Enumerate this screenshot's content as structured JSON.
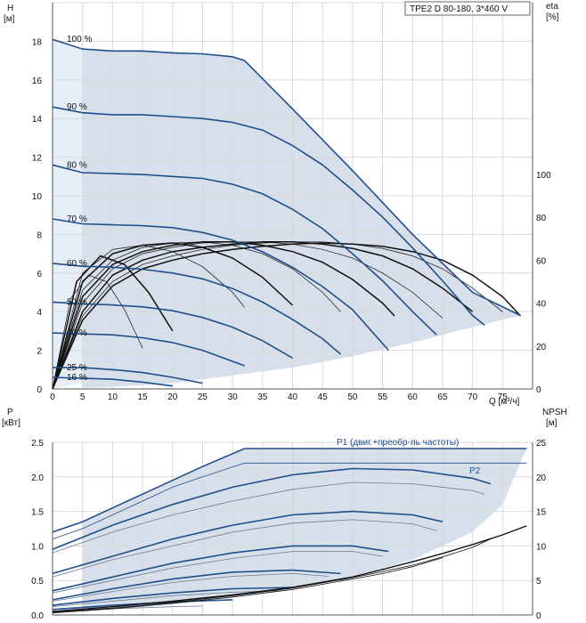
{
  "chart_data": [
    {
      "type": "line",
      "title": "TPE2 D 80-180, 3*460 V",
      "ylabel_left": "H",
      "ylabel_left_unit": "[м]",
      "ylabel_right": "eta",
      "ylabel_right_unit": "[%]",
      "xlabel": "Q [м³/ч]",
      "xlim": [
        0,
        80
      ],
      "ylim_left": [
        0,
        20
      ],
      "ylim_right": [
        0,
        180
      ],
      "x_ticks": [
        0,
        5,
        10,
        15,
        20,
        25,
        30,
        35,
        40,
        45,
        50,
        55,
        60,
        65,
        70,
        75
      ],
      "y_ticks_left": [
        0,
        2,
        4,
        6,
        8,
        10,
        12,
        14,
        16,
        18
      ],
      "y_ticks_right": [
        0,
        20,
        40,
        60,
        80,
        100
      ],
      "grid": true,
      "operating_area_color": "#c9d6e3",
      "curve_color": "#1f4e8c",
      "series": [
        {
          "label": "100 %",
          "x": [
            0,
            5,
            10,
            15,
            20,
            25,
            30,
            32,
            40,
            50,
            60,
            70,
            78
          ],
          "y": [
            18.1,
            17.6,
            17.5,
            17.5,
            17.4,
            17.35,
            17.2,
            17.0,
            14.5,
            11.3,
            8.0,
            5.0,
            3.8
          ]
        },
        {
          "label": "90 %",
          "x": [
            0,
            5,
            10,
            15,
            20,
            25,
            30,
            35,
            40,
            45,
            50,
            55,
            60,
            65,
            70,
            72
          ],
          "y": [
            14.6,
            14.3,
            14.2,
            14.2,
            14.1,
            14.0,
            13.8,
            13.4,
            12.6,
            11.6,
            10.3,
            8.9,
            7.3,
            5.6,
            3.8,
            3.3
          ]
        },
        {
          "label": "80 %",
          "x": [
            0,
            5,
            10,
            15,
            20,
            25,
            30,
            35,
            40,
            45,
            50,
            55,
            60,
            64
          ],
          "y": [
            11.6,
            11.2,
            11.15,
            11.1,
            11.0,
            10.9,
            10.6,
            10.1,
            9.3,
            8.3,
            7.0,
            5.6,
            4.0,
            2.8
          ]
        },
        {
          "label": "70 %",
          "x": [
            0,
            5,
            10,
            15,
            20,
            25,
            30,
            35,
            40,
            45,
            50,
            56
          ],
          "y": [
            8.8,
            8.55,
            8.5,
            8.45,
            8.35,
            8.1,
            7.7,
            7.1,
            6.3,
            5.3,
            4.1,
            2.0
          ]
        },
        {
          "label": "60 %",
          "x": [
            0,
            5,
            10,
            15,
            20,
            25,
            30,
            35,
            40,
            45,
            48
          ],
          "y": [
            6.5,
            6.35,
            6.3,
            6.2,
            6.0,
            5.7,
            5.2,
            4.5,
            3.6,
            2.6,
            1.8
          ]
        },
        {
          "label": "50 %",
          "x": [
            0,
            5,
            10,
            15,
            20,
            25,
            30,
            35,
            40
          ],
          "y": [
            4.5,
            4.4,
            4.35,
            4.25,
            4.05,
            3.7,
            3.2,
            2.5,
            1.6
          ]
        },
        {
          "label": "40 %",
          "x": [
            0,
            5,
            10,
            15,
            20,
            25,
            32
          ],
          "y": [
            2.9,
            2.85,
            2.8,
            2.65,
            2.4,
            2.0,
            1.2
          ]
        },
        {
          "label": "25 %",
          "x": [
            0,
            5,
            10,
            15,
            20,
            25
          ],
          "y": [
            1.1,
            1.1,
            1.0,
            0.85,
            0.6,
            0.3
          ]
        },
        {
          "label": "16 %",
          "x": [
            0,
            5,
            10,
            15,
            20
          ],
          "y": [
            0.6,
            0.55,
            0.5,
            0.35,
            0.15
          ]
        }
      ],
      "efficiency_curves": [
        {
          "x": [
            0,
            5,
            10,
            15,
            20,
            25,
            30,
            35,
            40,
            45,
            50,
            55,
            60,
            65,
            70,
            75,
            78
          ],
          "y": [
            0,
            32,
            48,
            56,
            60,
            63,
            65,
            66.5,
            67.5,
            68,
            67.5,
            66.5,
            64,
            60,
            53,
            43,
            34
          ]
        },
        {
          "x": [
            0,
            5,
            10,
            15,
            20,
            25,
            30,
            35,
            40,
            45,
            50,
            55,
            60,
            65,
            70,
            75
          ],
          "y": [
            0,
            34,
            50,
            58,
            62,
            65,
            67,
            68,
            68.5,
            68.5,
            67.5,
            65.5,
            62,
            56,
            47,
            36
          ]
        },
        {
          "x": [
            0,
            5,
            10,
            15,
            20,
            25,
            30,
            35,
            40,
            45,
            50,
            55,
            60,
            65,
            70
          ],
          "y": [
            0,
            36,
            53,
            60,
            64,
            66,
            67.5,
            68.5,
            68.5,
            67.5,
            65.5,
            62,
            56,
            47,
            36
          ]
        },
        {
          "x": [
            0,
            5,
            10,
            15,
            20,
            25,
            30,
            35,
            40,
            45,
            50,
            55,
            60,
            65
          ],
          "y": [
            0,
            40,
            56,
            63,
            66,
            68,
            68.5,
            68.5,
            67.5,
            65,
            61,
            54,
            45,
            33
          ]
        },
        {
          "x": [
            0,
            5,
            10,
            15,
            20,
            25,
            30,
            35,
            40,
            45,
            50,
            55,
            57
          ],
          "y": [
            0,
            43,
            58,
            64,
            67,
            68.5,
            68.5,
            67,
            64,
            59,
            51,
            40,
            34
          ]
        },
        {
          "x": [
            0,
            5,
            10,
            15,
            20,
            25,
            30,
            35,
            40,
            45,
            48
          ],
          "y": [
            0,
            46,
            60,
            66,
            68,
            68.5,
            67,
            63,
            56,
            45,
            36
          ]
        },
        {
          "x": [
            0,
            5,
            10,
            15,
            20,
            25,
            30,
            35,
            40
          ],
          "y": [
            0,
            50,
            63,
            67,
            68,
            66,
            61,
            52,
            39
          ]
        },
        {
          "x": [
            0,
            5,
            10,
            15,
            20,
            25,
            30,
            32
          ],
          "y": [
            0,
            54,
            65,
            67,
            64,
            57,
            45,
            38
          ]
        },
        {
          "x": [
            0,
            4,
            8,
            12,
            16,
            20
          ],
          "y": [
            0,
            50,
            62,
            58,
            45,
            27
          ]
        },
        {
          "x": [
            0,
            3,
            6,
            9,
            12,
            15
          ],
          "y": [
            0,
            42,
            53,
            50,
            37,
            19
          ]
        }
      ]
    },
    {
      "type": "line",
      "ylabel_left": "P",
      "ylabel_left_unit": "[кВт]",
      "ylabel_right": "NPSH",
      "ylabel_right_unit": "[м]",
      "xlim": [
        0,
        80
      ],
      "ylim_left": [
        0,
        2.5
      ],
      "ylim_right": [
        0,
        25
      ],
      "y_ticks_left": [
        0.0,
        0.5,
        1.0,
        1.5,
        2.0,
        2.5
      ],
      "y_ticks_right": [
        0,
        5,
        10,
        15,
        20,
        25
      ],
      "grid": true,
      "annotations": [
        "P1 (двиг.+преобр-ль частоты)",
        "P2"
      ],
      "series": [
        {
          "name": "P1 (двиг.+преобр-ль частоты)",
          "x": [
            0,
            5,
            10,
            15,
            20,
            25,
            32,
            40,
            50,
            60,
            70,
            79
          ],
          "y": [
            1.2,
            1.35,
            1.55,
            1.75,
            1.95,
            2.15,
            2.41,
            2.41,
            2.41,
            2.41,
            2.41,
            2.41
          ]
        },
        {
          "name": "P2",
          "x": [
            0,
            5,
            10,
            15,
            20,
            25,
            32,
            40,
            50,
            60,
            70,
            79
          ],
          "y": [
            1.1,
            1.25,
            1.45,
            1.65,
            1.85,
            2.0,
            2.2,
            2.2,
            2.2,
            2.2,
            2.2,
            2.2
          ]
        },
        {
          "x": [
            0,
            10,
            20,
            30,
            40,
            50,
            60,
            70,
            73
          ],
          "y": [
            0.95,
            1.3,
            1.6,
            1.85,
            2.03,
            2.12,
            2.1,
            1.98,
            1.9
          ]
        },
        {
          "x": [
            0,
            10,
            20,
            30,
            40,
            50,
            60,
            70,
            72
          ],
          "y": [
            0.9,
            1.2,
            1.45,
            1.65,
            1.82,
            1.92,
            1.9,
            1.8,
            1.75
          ]
        },
        {
          "x": [
            0,
            10,
            20,
            30,
            40,
            50,
            60,
            65
          ],
          "y": [
            0.6,
            0.85,
            1.1,
            1.3,
            1.45,
            1.5,
            1.45,
            1.35
          ]
        },
        {
          "x": [
            0,
            10,
            20,
            30,
            40,
            50,
            60,
            64
          ],
          "y": [
            0.55,
            0.8,
            1.0,
            1.2,
            1.33,
            1.38,
            1.32,
            1.22
          ]
        },
        {
          "x": [
            0,
            10,
            20,
            30,
            40,
            50,
            56
          ],
          "y": [
            0.35,
            0.55,
            0.75,
            0.9,
            1.0,
            1.0,
            0.92
          ]
        },
        {
          "x": [
            0,
            10,
            20,
            30,
            40,
            50,
            55
          ],
          "y": [
            0.32,
            0.5,
            0.68,
            0.82,
            0.92,
            0.92,
            0.85
          ]
        },
        {
          "x": [
            0,
            10,
            20,
            30,
            40,
            48
          ],
          "y": [
            0.22,
            0.38,
            0.52,
            0.62,
            0.65,
            0.6
          ]
        },
        {
          "x": [
            0,
            10,
            20,
            30,
            40,
            46
          ],
          "y": [
            0.2,
            0.34,
            0.47,
            0.56,
            0.6,
            0.56
          ]
        },
        {
          "x": [
            0,
            10,
            20,
            30,
            40
          ],
          "y": [
            0.14,
            0.24,
            0.32,
            0.38,
            0.4
          ]
        },
        {
          "x": [
            0,
            10,
            20,
            30,
            38
          ],
          "y": [
            0.12,
            0.2,
            0.28,
            0.33,
            0.35
          ]
        },
        {
          "x": [
            0,
            10,
            20,
            30
          ],
          "y": [
            0.08,
            0.14,
            0.19,
            0.22
          ]
        },
        {
          "x": [
            0,
            10,
            20,
            25
          ],
          "y": [
            0.05,
            0.09,
            0.12,
            0.13
          ]
        }
      ],
      "npsh_curves": [
        {
          "x": [
            0,
            10,
            20,
            30,
            40,
            50,
            55,
            60,
            65,
            70,
            75,
            79
          ],
          "y": [
            0.5,
            1.2,
            2.0,
            2.9,
            4.0,
            5.5,
            6.6,
            7.7,
            8.9,
            10.2,
            11.6,
            12.9
          ]
        },
        {
          "x": [
            0,
            10,
            20,
            30,
            40,
            50,
            55,
            60,
            65,
            70,
            73
          ],
          "y": [
            0.4,
            1.0,
            1.8,
            2.8,
            3.9,
            5.4,
            6.3,
            7.2,
            8.4,
            9.8,
            11.0
          ]
        },
        {
          "x": [
            0,
            10,
            20,
            30,
            40,
            50,
            55,
            60,
            65
          ],
          "y": [
            0.3,
            0.9,
            1.7,
            2.6,
            3.7,
            5.2,
            6.0,
            7.0,
            8.3
          ]
        }
      ]
    }
  ]
}
